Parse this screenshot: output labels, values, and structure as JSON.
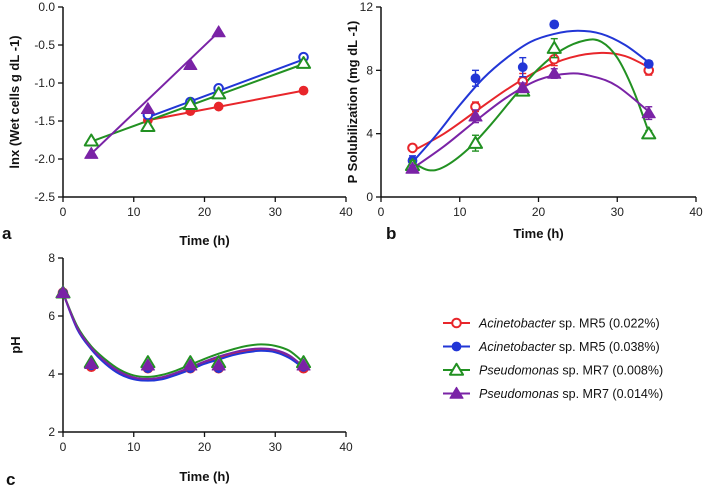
{
  "colors": {
    "acin_022": "#e8262b",
    "acin_038": "#2236d6",
    "pseu_008": "#229122",
    "pseu_014": "#7a23a6"
  },
  "chart_data": [
    {
      "id": "a",
      "panel_label": "a",
      "type": "line",
      "title": "",
      "xlabel": "Time (h)",
      "ylabel": "lnx (Wet cells g dL -1)",
      "xlim": [
        0,
        40
      ],
      "ylim": [
        -2.5,
        0.0
      ],
      "xticks": [
        0,
        10,
        20,
        30,
        40
      ],
      "yticks": [
        -2.5,
        -2.0,
        -1.5,
        -1.0,
        -0.5,
        0.0
      ],
      "ytick_labels": [
        "-2.5",
        "-2.0",
        "-1.5",
        "-1.0",
        "-0.5",
        "0.0"
      ],
      "series": [
        {
          "name": "Acinetobacter sp. MR5 (0.022%)",
          "key": "acin_022",
          "marker": "circle-filled",
          "x": [
            12,
            18,
            22,
            34
          ],
          "y": [
            -1.49,
            -1.37,
            -1.31,
            -1.1
          ],
          "fit": [
            [
              12,
              -1.49
            ],
            [
              34,
              -1.1
            ]
          ]
        },
        {
          "name": "Acinetobacter sp. MR5 (0.038%)",
          "key": "acin_038",
          "marker": "circle-open",
          "x": [
            12,
            18,
            22,
            34
          ],
          "y": [
            -1.42,
            -1.25,
            -1.07,
            -0.66
          ],
          "fit": [
            [
              12,
              -1.45
            ],
            [
              34,
              -0.69
            ]
          ]
        },
        {
          "name": "Pseudomonas sp. MR7 (0.008%)",
          "key": "pseu_008",
          "marker": "triangle-open",
          "x": [
            4,
            12,
            18,
            22,
            34
          ],
          "y": [
            -1.76,
            -1.57,
            -1.28,
            -1.14,
            -0.74
          ],
          "fit": [
            [
              4,
              -1.77
            ],
            [
              34,
              -0.75
            ]
          ]
        },
        {
          "name": "Pseudomonas sp. MR7 (0.014%)",
          "key": "pseu_014",
          "marker": "triangle-filled",
          "x": [
            4,
            12,
            18,
            22
          ],
          "y": [
            -1.93,
            -1.34,
            -0.76,
            -0.33
          ],
          "fit": [
            [
              4,
              -1.93
            ],
            [
              22,
              -0.33
            ]
          ]
        }
      ]
    },
    {
      "id": "b",
      "panel_label": "b",
      "type": "scatter",
      "title": "",
      "xlabel": "Time (h)",
      "ylabel": "P Solubilization (mg dL -1)",
      "xlim": [
        0,
        40
      ],
      "ylim": [
        0,
        12
      ],
      "xticks": [
        0,
        10,
        20,
        30,
        40
      ],
      "yticks": [
        0,
        4,
        8,
        12
      ],
      "ytick_labels": [
        "0",
        "4",
        "8",
        "12"
      ],
      "series": [
        {
          "name": "Acinetobacter sp. MR5 (0.022%)",
          "key": "acin_022",
          "marker": "circle-open",
          "x": [
            4,
            12,
            18,
            22,
            34
          ],
          "y": [
            3.1,
            5.7,
            7.3,
            8.7,
            8.0
          ],
          "err": [
            0.2,
            0.3,
            0.5,
            0.4,
            0.3
          ],
          "fit": [
            [
              4,
              2.9
            ],
            [
              8,
              4.0
            ],
            [
              12,
              5.4
            ],
            [
              16,
              6.8
            ],
            [
              20,
              8.0
            ],
            [
              24,
              8.8
            ],
            [
              28,
              9.1
            ],
            [
              31,
              8.9
            ],
            [
              34,
              8.2
            ]
          ]
        },
        {
          "name": "Acinetobacter sp. MR5 (0.038%)",
          "key": "acin_038",
          "marker": "circle-filled",
          "x": [
            4,
            12,
            18,
            22,
            34
          ],
          "y": [
            2.3,
            7.5,
            8.2,
            10.9,
            8.4
          ],
          "err": [
            0.3,
            0.5,
            0.6,
            0.2,
            0.2
          ],
          "fit": [
            [
              4,
              2.2
            ],
            [
              7,
              3.9
            ],
            [
              10,
              5.8
            ],
            [
              13,
              7.5
            ],
            [
              16,
              8.8
            ],
            [
              19,
              9.8
            ],
            [
              22,
              10.3
            ],
            [
              25,
              10.5
            ],
            [
              28,
              10.3
            ],
            [
              31,
              9.6
            ],
            [
              34,
              8.5
            ]
          ]
        },
        {
          "name": "Pseudomonas sp. MR7 (0.008%)",
          "key": "pseu_008",
          "marker": "triangle-open",
          "x": [
            4,
            12,
            18,
            22,
            34
          ],
          "y": [
            2.0,
            3.4,
            6.7,
            9.4,
            4.0
          ],
          "err": [
            0.3,
            0.5,
            0.3,
            0.6,
            0.2
          ],
          "fit": [
            [
              4,
              2.2
            ],
            [
              6,
              1.7
            ],
            [
              8,
              1.9
            ],
            [
              11,
              3.0
            ],
            [
              14,
              4.6
            ],
            [
              17,
              6.4
            ],
            [
              20,
              8.1
            ],
            [
              23,
              9.3
            ],
            [
              26,
              9.9
            ],
            [
              28,
              9.8
            ],
            [
              30,
              8.8
            ],
            [
              32,
              6.8
            ],
            [
              34,
              4.1
            ]
          ]
        },
        {
          "name": "Pseudomonas sp. MR7 (0.014%)",
          "key": "pseu_014",
          "marker": "triangle-filled",
          "x": [
            4,
            12,
            18,
            22,
            34
          ],
          "y": [
            1.8,
            5.1,
            6.9,
            7.8,
            5.3
          ],
          "err": [
            0.2,
            0.4,
            0.3,
            0.3,
            0.4
          ],
          "fit": [
            [
              4,
              1.8
            ],
            [
              8,
              3.2
            ],
            [
              12,
              4.8
            ],
            [
              16,
              6.3
            ],
            [
              20,
              7.4
            ],
            [
              24,
              7.8
            ],
            [
              27,
              7.6
            ],
            [
              30,
              7.0
            ],
            [
              34,
              5.4
            ]
          ]
        }
      ]
    },
    {
      "id": "c",
      "panel_label": "c",
      "type": "scatter",
      "title": "",
      "xlabel": "Time (h)",
      "ylabel": "pH",
      "xlim": [
        0,
        40
      ],
      "ylim": [
        2,
        8
      ],
      "xticks": [
        0,
        10,
        20,
        30,
        40
      ],
      "yticks": [
        2,
        4,
        6,
        8
      ],
      "ytick_labels": [
        "2",
        "4",
        "6",
        "8"
      ],
      "series": [
        {
          "name": "Acinetobacter sp. MR5 (0.022%)",
          "key": "acin_022",
          "marker": "circle-open",
          "x": [
            0,
            4,
            12,
            18,
            22,
            34
          ],
          "y": [
            6.8,
            4.25,
            4.2,
            4.2,
            4.2,
            4.2
          ],
          "fit": [
            [
              0,
              6.8
            ],
            [
              2,
              5.6
            ],
            [
              4,
              4.9
            ],
            [
              6,
              4.4
            ],
            [
              8,
              4.05
            ],
            [
              10,
              3.85
            ],
            [
              12,
              3.8
            ],
            [
              14,
              3.85
            ],
            [
              16,
              4.0
            ],
            [
              18,
              4.2
            ],
            [
              20,
              4.4
            ],
            [
              22,
              4.55
            ],
            [
              24,
              4.7
            ],
            [
              26,
              4.8
            ],
            [
              28,
              4.85
            ],
            [
              30,
              4.8
            ],
            [
              32,
              4.6
            ],
            [
              34,
              4.2
            ]
          ]
        },
        {
          "name": "Acinetobacter sp. MR5 (0.038%)",
          "key": "acin_038",
          "marker": "circle-filled",
          "x": [
            0,
            4,
            12,
            18,
            22,
            34
          ],
          "y": [
            6.8,
            4.3,
            4.2,
            4.2,
            4.2,
            4.25
          ],
          "fit": [
            [
              0,
              6.8
            ],
            [
              2,
              5.55
            ],
            [
              4,
              4.85
            ],
            [
              6,
              4.35
            ],
            [
              8,
              4.0
            ],
            [
              10,
              3.82
            ],
            [
              12,
              3.77
            ],
            [
              14,
              3.82
            ],
            [
              16,
              3.97
            ],
            [
              18,
              4.15
            ],
            [
              20,
              4.35
            ],
            [
              22,
              4.5
            ],
            [
              24,
              4.65
            ],
            [
              26,
              4.75
            ],
            [
              28,
              4.8
            ],
            [
              30,
              4.75
            ],
            [
              32,
              4.55
            ],
            [
              34,
              4.2
            ]
          ]
        },
        {
          "name": "Pseudomonas sp. MR7 (0.008%)",
          "key": "pseu_008",
          "marker": "triangle-open",
          "x": [
            0,
            4,
            12,
            18,
            22,
            34
          ],
          "y": [
            6.8,
            4.4,
            4.4,
            4.4,
            4.4,
            4.4
          ],
          "fit": [
            [
              0,
              6.8
            ],
            [
              2,
              5.65
            ],
            [
              4,
              4.95
            ],
            [
              6,
              4.5
            ],
            [
              8,
              4.15
            ],
            [
              10,
              3.95
            ],
            [
              12,
              3.9
            ],
            [
              14,
              3.97
            ],
            [
              16,
              4.12
            ],
            [
              18,
              4.32
            ],
            [
              20,
              4.52
            ],
            [
              22,
              4.7
            ],
            [
              24,
              4.85
            ],
            [
              26,
              4.97
            ],
            [
              28,
              5.02
            ],
            [
              30,
              4.97
            ],
            [
              32,
              4.8
            ],
            [
              34,
              4.4
            ]
          ]
        },
        {
          "name": "Pseudomonas sp. MR7 (0.014%)",
          "key": "pseu_014",
          "marker": "triangle-filled",
          "x": [
            0,
            4,
            12,
            18,
            22,
            34
          ],
          "y": [
            6.8,
            4.35,
            4.3,
            4.3,
            4.3,
            4.3
          ],
          "fit": [
            [
              0,
              6.8
            ],
            [
              2,
              5.6
            ],
            [
              4,
              4.9
            ],
            [
              6,
              4.42
            ],
            [
              8,
              4.08
            ],
            [
              10,
              3.88
            ],
            [
              12,
              3.83
            ],
            [
              14,
              3.89
            ],
            [
              16,
              4.04
            ],
            [
              18,
              4.23
            ],
            [
              20,
              4.43
            ],
            [
              22,
              4.6
            ],
            [
              24,
              4.74
            ],
            [
              26,
              4.84
            ],
            [
              28,
              4.88
            ],
            [
              30,
              4.83
            ],
            [
              32,
              4.64
            ],
            [
              34,
              4.25
            ]
          ]
        }
      ]
    }
  ],
  "legend": {
    "position": "right of panel c",
    "items": [
      {
        "italic": "Acinetobacter",
        "rest": " sp. MR5 (0.022%)",
        "key": "acin_022",
        "marker": "circle-open"
      },
      {
        "italic": "Acinetobacter",
        "rest": " sp. MR5 (0.038%)",
        "key": "acin_038",
        "marker": "circle-filled"
      },
      {
        "italic": "Pseudomonas",
        "rest": " sp. MR7 (0.008%)",
        "key": "pseu_008",
        "marker": "triangle-open"
      },
      {
        "italic": "Pseudomonas",
        "rest": " sp. MR7 (0.014%)",
        "key": "pseu_014",
        "marker": "triangle-filled"
      }
    ]
  }
}
